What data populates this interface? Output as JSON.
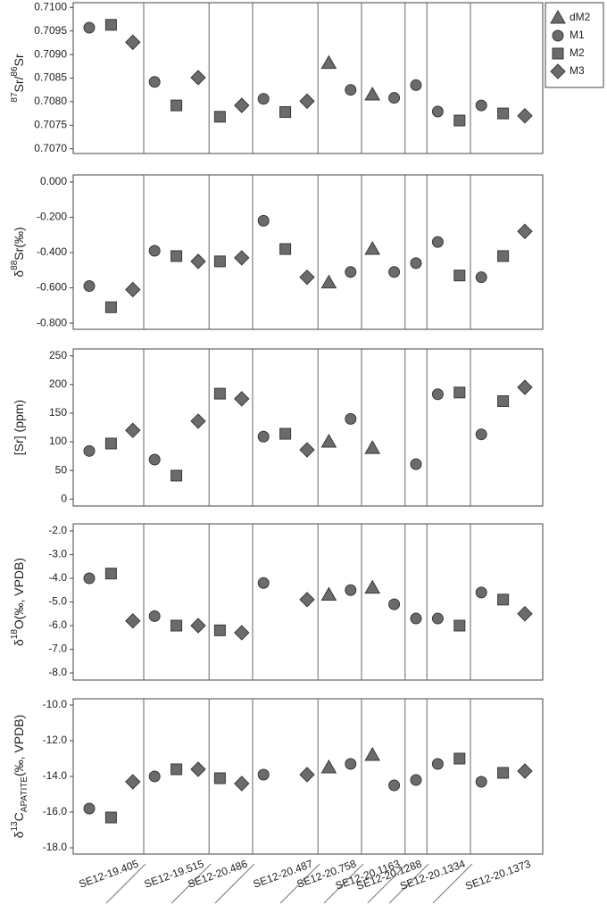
{
  "chart_data": [
    {
      "type": "scatter",
      "ylabel": [
        {
          "text": "87",
          "sup": true
        },
        {
          "text": "Sr/"
        },
        {
          "text": "86",
          "sup": true
        },
        {
          "text": "Sr"
        }
      ],
      "ylim": [
        0.7069,
        0.7101
      ],
      "yticks": [
        {
          "value": 0.707,
          "label": "0.7070"
        },
        {
          "value": 0.7075,
          "label": "0.7075"
        },
        {
          "value": 0.708,
          "label": "0.7080"
        },
        {
          "value": 0.7085,
          "label": "0.7085"
        },
        {
          "value": 0.709,
          "label": "0.7090"
        },
        {
          "value": 0.7095,
          "label": "0.7095"
        },
        {
          "value": 0.71,
          "label": "0.7100"
        }
      ],
      "legend": "outside-top-right",
      "series": [
        {
          "name": "dM2",
          "marker": "triangle",
          "color": "#6b6b6b",
          "values": [
            null,
            null,
            null,
            null,
            null,
            null,
            null,
            null,
            null,
            null,
            null,
            0.70882,
            null,
            0.70815,
            null,
            null,
            null,
            null,
            null,
            null,
            null
          ]
        },
        {
          "name": "M1",
          "marker": "circle",
          "color": "#6b6b6b",
          "values": [
            0.70957,
            null,
            null,
            0.70842,
            null,
            null,
            null,
            null,
            0.70806,
            null,
            null,
            null,
            0.70825,
            null,
            0.70808,
            0.70835,
            0.70779,
            null,
            0.70792,
            null,
            null
          ]
        },
        {
          "name": "M2",
          "marker": "square",
          "color": "#6b6b6b",
          "values": [
            null,
            0.70963,
            null,
            null,
            0.70792,
            null,
            0.70768,
            null,
            null,
            0.70778,
            null,
            null,
            null,
            null,
            null,
            null,
            null,
            0.7076,
            null,
            0.70775,
            null
          ]
        },
        {
          "name": "M3",
          "marker": "diamond",
          "color": "#6b6b6b",
          "values": [
            null,
            null,
            0.70926,
            null,
            null,
            0.70851,
            null,
            0.70792,
            null,
            null,
            0.70801,
            null,
            null,
            null,
            null,
            null,
            null,
            null,
            null,
            null,
            0.7077
          ]
        }
      ]
    },
    {
      "type": "scatter",
      "ylabel": [
        {
          "text": "δ"
        },
        {
          "text": "88",
          "sup": true
        },
        {
          "text": "Sr(‰)"
        }
      ],
      "ylim": [
        -0.835,
        0.04
      ],
      "yticks": [
        {
          "value": 0,
          "label": "0.000"
        },
        {
          "value": -0.2,
          "label": "-0.200"
        },
        {
          "value": -0.4,
          "label": "-0.400"
        },
        {
          "value": -0.6,
          "label": "-0.600"
        },
        {
          "value": -0.8,
          "label": "-0.800"
        }
      ],
      "series": [
        {
          "values": [
            null,
            null,
            null,
            null,
            null,
            null,
            null,
            null,
            null,
            null,
            null,
            -0.57,
            null,
            -0.38,
            null,
            null,
            null,
            null,
            null,
            null,
            null
          ]
        },
        {
          "values": [
            -0.59,
            null,
            null,
            -0.39,
            null,
            null,
            null,
            null,
            -0.22,
            null,
            null,
            null,
            -0.51,
            null,
            -0.51,
            -0.46,
            -0.34,
            null,
            -0.54,
            null,
            null
          ]
        },
        {
          "values": [
            null,
            -0.71,
            null,
            null,
            -0.42,
            null,
            -0.45,
            null,
            null,
            -0.38,
            null,
            null,
            null,
            null,
            null,
            null,
            null,
            -0.53,
            null,
            -0.42,
            null
          ]
        },
        {
          "values": [
            null,
            null,
            -0.61,
            null,
            null,
            -0.45,
            null,
            -0.43,
            null,
            null,
            -0.54,
            null,
            null,
            null,
            null,
            null,
            null,
            null,
            null,
            null,
            -0.28
          ]
        }
      ]
    },
    {
      "type": "scatter",
      "ylabel": [
        {
          "text": "[Sr] (ppm)"
        }
      ],
      "ylim": [
        -12,
        262
      ],
      "yticks": [
        0,
        50,
        100,
        150,
        200,
        250
      ],
      "series": [
        {
          "values": [
            null,
            null,
            null,
            null,
            null,
            null,
            null,
            null,
            null,
            null,
            null,
            100,
            null,
            89,
            null,
            null,
            null,
            null,
            null,
            null,
            null
          ]
        },
        {
          "values": [
            84,
            null,
            null,
            69,
            null,
            null,
            null,
            null,
            109,
            null,
            null,
            null,
            140,
            null,
            null,
            61,
            183,
            null,
            113,
            null,
            null
          ]
        },
        {
          "values": [
            null,
            97,
            null,
            null,
            41,
            null,
            184,
            null,
            null,
            114,
            null,
            null,
            null,
            null,
            null,
            null,
            null,
            186,
            null,
            171,
            null
          ]
        },
        {
          "values": [
            null,
            null,
            120,
            null,
            null,
            136,
            null,
            175,
            null,
            null,
            86,
            null,
            null,
            null,
            null,
            null,
            null,
            null,
            null,
            null,
            195
          ]
        }
      ]
    },
    {
      "type": "scatter",
      "ylabel": [
        {
          "text": "δ"
        },
        {
          "text": "18",
          "sup": true
        },
        {
          "text": "O(‰, VPDB)"
        }
      ],
      "ylim": [
        -8.3,
        -1.7
      ],
      "yticks": [
        {
          "value": -2,
          "label": "-2.0"
        },
        {
          "value": -3,
          "label": "-3.0"
        },
        {
          "value": -4,
          "label": "-4.0"
        },
        {
          "value": -5,
          "label": "-5.0"
        },
        {
          "value": -6,
          "label": "-6.0"
        },
        {
          "value": -7,
          "label": "-7.0"
        },
        {
          "value": -8,
          "label": "-8.0"
        }
      ],
      "series": [
        {
          "values": [
            null,
            null,
            null,
            null,
            null,
            null,
            null,
            null,
            null,
            null,
            null,
            -4.7,
            null,
            -4.4,
            null,
            null,
            null,
            null,
            null,
            null,
            null
          ]
        },
        {
          "values": [
            -4.0,
            null,
            null,
            -5.6,
            null,
            null,
            null,
            null,
            -4.2,
            null,
            null,
            null,
            -4.5,
            null,
            -5.1,
            -5.7,
            -5.7,
            null,
            -4.6,
            null,
            null
          ]
        },
        {
          "values": [
            null,
            -3.8,
            null,
            null,
            -6.0,
            null,
            -6.2,
            null,
            null,
            null,
            null,
            null,
            null,
            null,
            null,
            null,
            null,
            -6.0,
            null,
            -4.9,
            null
          ]
        },
        {
          "values": [
            null,
            null,
            -5.8,
            null,
            null,
            -6.0,
            null,
            -6.3,
            null,
            null,
            -4.9,
            null,
            null,
            null,
            null,
            null,
            null,
            null,
            null,
            null,
            -5.5
          ]
        }
      ]
    },
    {
      "type": "scatter",
      "ylabel": [
        {
          "text": "δ"
        },
        {
          "text": "13",
          "sup": true
        },
        {
          "text": "C"
        },
        {
          "text": "APATITE",
          "sub": true
        },
        {
          "text": "(‰, VPDB)"
        }
      ],
      "ylim": [
        -18.35,
        -9.65
      ],
      "yticks": [
        {
          "value": -10,
          "label": "-10.0"
        },
        {
          "value": -12,
          "label": "-12.0"
        },
        {
          "value": -14,
          "label": "-14.0"
        },
        {
          "value": -16,
          "label": "-16.0"
        },
        {
          "value": -18,
          "label": "-18.0"
        }
      ],
      "categories": [
        "SE12-19.405",
        null,
        null,
        "SE12-19.515",
        null,
        null,
        "SE12-20.486",
        null,
        "SE12-20.487",
        null,
        null,
        "SE12-20.758",
        null,
        "SE12-20.1163",
        null,
        "SE12-20.1288",
        "SE12-20.1334",
        null,
        "SE12-20.1373",
        null,
        null
      ],
      "series": [
        {
          "values": [
            null,
            null,
            null,
            null,
            null,
            null,
            null,
            null,
            null,
            null,
            null,
            -13.5,
            null,
            -12.8,
            null,
            null,
            null,
            null,
            null,
            null,
            null
          ]
        },
        {
          "values": [
            -15.8,
            null,
            null,
            -14.0,
            null,
            null,
            null,
            null,
            -13.9,
            null,
            null,
            null,
            -13.3,
            null,
            -14.5,
            -14.2,
            -13.3,
            null,
            -14.3,
            null,
            null
          ]
        },
        {
          "values": [
            null,
            -16.3,
            null,
            null,
            -13.6,
            null,
            -14.1,
            null,
            null,
            null,
            null,
            null,
            null,
            null,
            null,
            null,
            null,
            -13.0,
            null,
            -13.8,
            null
          ]
        },
        {
          "values": [
            null,
            null,
            -14.3,
            null,
            null,
            -13.6,
            null,
            -14.4,
            null,
            null,
            -13.9,
            null,
            null,
            null,
            null,
            null,
            null,
            null,
            null,
            null,
            -13.7
          ]
        }
      ]
    }
  ]
}
